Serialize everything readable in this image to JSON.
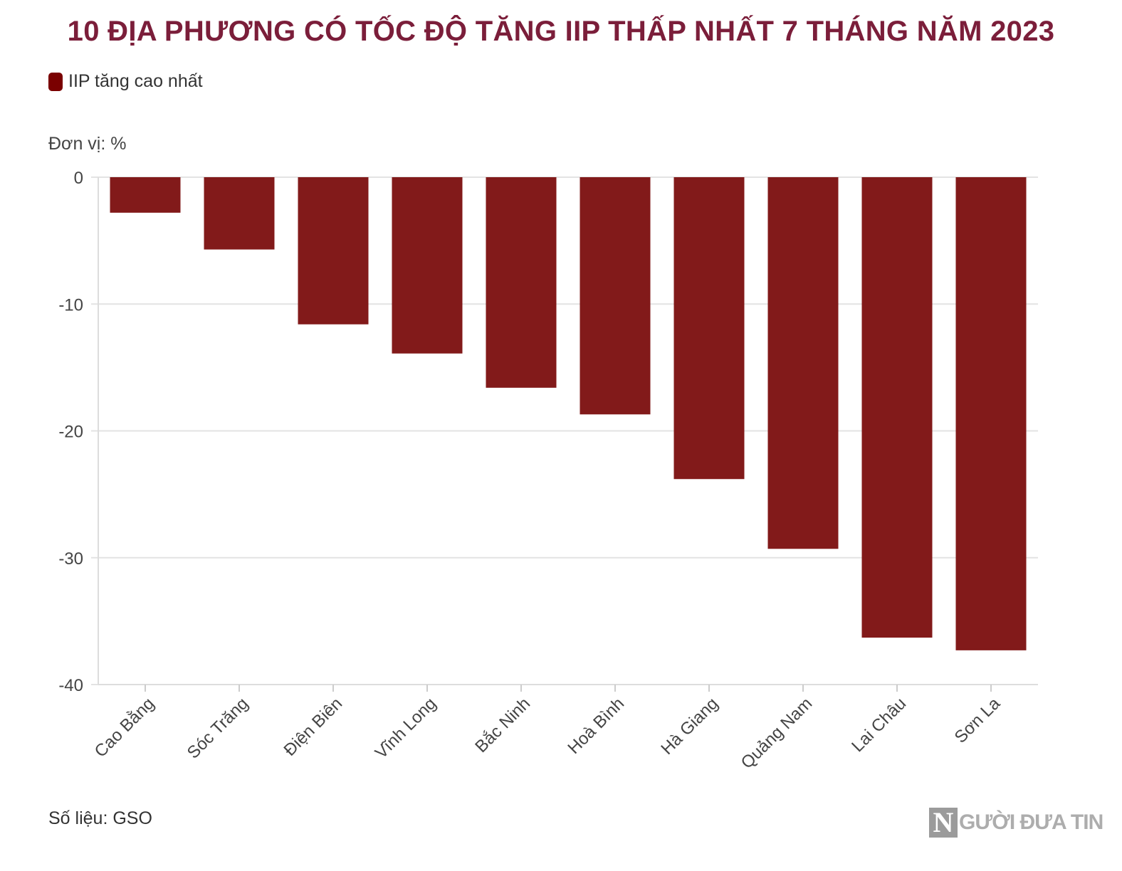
{
  "title": "10 ĐỊA PHƯƠNG CÓ TỐC ĐỘ TĂNG IIP THẤP NHẤT 7 THÁNG NĂM 2023",
  "legend": {
    "label": "IIP tăng cao nhất",
    "color": "#7a0000"
  },
  "unit_label": "Đơn vị: %",
  "source": "Số liệu: GSO",
  "logo": {
    "letter": "N",
    "text": "GƯỜI ĐƯA TIN"
  },
  "chart_data": {
    "type": "bar",
    "categories": [
      "Cao Bằng",
      "Sóc Trăng",
      "Điện Biên",
      "Vĩnh Long",
      "Bắc Ninh",
      "Hoà Bình",
      "Hà Giang",
      "Quảng Nam",
      "Lai Châu",
      "Sơn La"
    ],
    "series": [
      {
        "name": "IIP tăng cao nhất",
        "values": [
          -2.8,
          -5.7,
          -11.6,
          -13.9,
          -16.6,
          -18.7,
          -23.8,
          -29.3,
          -36.3,
          -37.3
        ]
      }
    ],
    "ylim": [
      -40,
      0
    ],
    "yticks": [
      0,
      -10,
      -20,
      -30,
      -40
    ],
    "bar_color": "#821a1a",
    "grid": true
  }
}
